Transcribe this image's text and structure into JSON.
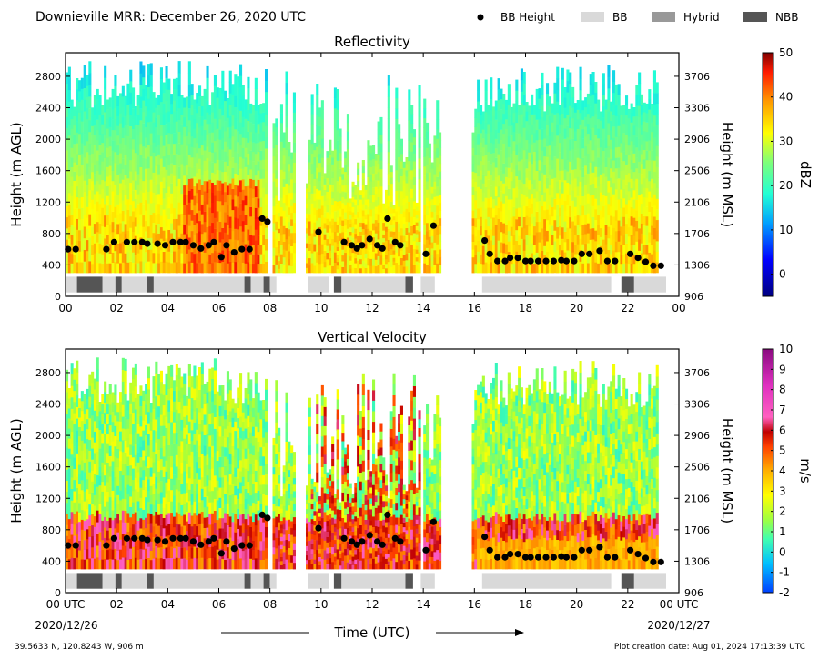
{
  "header": {
    "title": "Downieville MRR:  December 26, 2020 UTC",
    "legend": [
      {
        "label": "BB Height",
        "kind": "dot",
        "color": "#000000"
      },
      {
        "label": "BB",
        "kind": "patch",
        "color": "#d9d9d9"
      },
      {
        "label": "Hybrid",
        "kind": "patch",
        "color": "#999999"
      },
      {
        "label": "NBB",
        "kind": "patch",
        "color": "#555555"
      }
    ]
  },
  "chart_data": [
    {
      "type": "heatmap",
      "title": "Reflectivity",
      "ylabel": "Height (m AGL)",
      "y2label": "Height (m MSL)",
      "ylim": [
        0,
        3100
      ],
      "yticks": [
        "0",
        "400",
        "800",
        "1200",
        "1600",
        "2000",
        "2400",
        "2800"
      ],
      "y2ticks": [
        "906",
        "1306",
        "1706",
        "2106",
        "2506",
        "2906",
        "3306",
        "3706"
      ],
      "xlim": [
        0,
        24
      ],
      "xticks": [
        "00",
        "02",
        "04",
        "06",
        "08",
        "10",
        "12",
        "14",
        "16",
        "18",
        "20",
        "22",
        "00"
      ],
      "colorbar": {
        "label": "dBZ",
        "min": -5,
        "max": 50,
        "ticks": [
          "0",
          "10",
          "20",
          "30",
          "40",
          "50"
        ]
      }
    },
    {
      "type": "heatmap",
      "title": "Vertical Velocity",
      "ylabel": "Height (m AGL)",
      "y2label": "Height (m MSL)",
      "ylim": [
        0,
        3100
      ],
      "yticks": [
        "0",
        "400",
        "800",
        "1200",
        "1600",
        "2000",
        "2400",
        "2800"
      ],
      "y2ticks": [
        "906",
        "1306",
        "1706",
        "2106",
        "2506",
        "2906",
        "3306",
        "3706"
      ],
      "xlim": [
        0,
        24
      ],
      "xticks": [
        "00 UTC",
        "02",
        "04",
        "06",
        "08",
        "10",
        "12",
        "14",
        "16",
        "18",
        "20",
        "22",
        "00 UTC"
      ],
      "colorbar": {
        "label": "m/s",
        "min": -2,
        "max": 10,
        "ticks": [
          "-2",
          "-1",
          "0",
          "1",
          "2",
          "3",
          "4",
          "5",
          "6",
          "7",
          "8",
          "9",
          "10"
        ]
      }
    }
  ],
  "bb_height": {
    "points": [
      [
        0.1,
        600
      ],
      [
        0.4,
        600
      ],
      [
        1.6,
        600
      ],
      [
        1.9,
        690
      ],
      [
        2.4,
        690
      ],
      [
        2.7,
        690
      ],
      [
        3.0,
        690
      ],
      [
        3.2,
        670
      ],
      [
        3.6,
        670
      ],
      [
        3.9,
        650
      ],
      [
        4.2,
        690
      ],
      [
        4.5,
        690
      ],
      [
        4.7,
        690
      ],
      [
        5.0,
        650
      ],
      [
        5.3,
        610
      ],
      [
        5.6,
        650
      ],
      [
        5.8,
        690
      ],
      [
        6.1,
        500
      ],
      [
        6.3,
        650
      ],
      [
        6.6,
        560
      ],
      [
        6.9,
        600
      ],
      [
        7.2,
        600
      ],
      [
        7.7,
        990
      ],
      [
        7.9,
        950
      ],
      [
        9.9,
        820
      ],
      [
        10.9,
        690
      ],
      [
        11.2,
        650
      ],
      [
        11.4,
        610
      ],
      [
        11.6,
        650
      ],
      [
        11.9,
        730
      ],
      [
        12.2,
        650
      ],
      [
        12.4,
        610
      ],
      [
        12.6,
        990
      ],
      [
        12.9,
        690
      ],
      [
        13.1,
        650
      ],
      [
        14.1,
        540
      ],
      [
        14.4,
        900
      ],
      [
        16.4,
        710
      ],
      [
        16.6,
        540
      ],
      [
        16.9,
        450
      ],
      [
        17.2,
        450
      ],
      [
        17.4,
        490
      ],
      [
        17.7,
        490
      ],
      [
        18.0,
        450
      ],
      [
        18.2,
        450
      ],
      [
        18.5,
        450
      ],
      [
        18.8,
        450
      ],
      [
        19.1,
        450
      ],
      [
        19.4,
        460
      ],
      [
        19.6,
        450
      ],
      [
        19.9,
        450
      ],
      [
        20.2,
        540
      ],
      [
        20.5,
        540
      ],
      [
        20.9,
        580
      ],
      [
        21.2,
        450
      ],
      [
        21.5,
        450
      ],
      [
        22.1,
        540
      ],
      [
        22.4,
        490
      ],
      [
        22.7,
        440
      ],
      [
        23.0,
        390
      ],
      [
        23.3,
        390
      ]
    ]
  },
  "bb_bar": {
    "segments": [
      {
        "start": 0.0,
        "end": 0.45,
        "type": "BB"
      },
      {
        "start": 0.45,
        "end": 1.45,
        "type": "NBB"
      },
      {
        "start": 1.45,
        "end": 1.95,
        "type": "BB"
      },
      {
        "start": 1.95,
        "end": 2.2,
        "type": "NBB"
      },
      {
        "start": 2.2,
        "end": 3.2,
        "type": "BB"
      },
      {
        "start": 3.2,
        "end": 3.45,
        "type": "NBB"
      },
      {
        "start": 3.45,
        "end": 7.0,
        "type": "BB"
      },
      {
        "start": 7.0,
        "end": 7.25,
        "type": "NBB"
      },
      {
        "start": 7.25,
        "end": 7.75,
        "type": "BB"
      },
      {
        "start": 7.75,
        "end": 8.0,
        "type": "NBB"
      },
      {
        "start": 8.0,
        "end": 8.25,
        "type": "BB"
      },
      {
        "start": 9.5,
        "end": 10.3,
        "type": "BB"
      },
      {
        "start": 10.5,
        "end": 10.8,
        "type": "NBB"
      },
      {
        "start": 10.8,
        "end": 13.3,
        "type": "BB"
      },
      {
        "start": 13.3,
        "end": 13.6,
        "type": "NBB"
      },
      {
        "start": 13.9,
        "end": 14.45,
        "type": "BB"
      },
      {
        "start": 16.3,
        "end": 21.35,
        "type": "BB"
      },
      {
        "start": 21.75,
        "end": 22.25,
        "type": "NBB"
      },
      {
        "start": 22.25,
        "end": 23.5,
        "type": "BB"
      }
    ]
  },
  "xlabel": "Time (UTC)",
  "date_start": "2020/12/26",
  "date_end": "2020/12/27",
  "footer": {
    "location": "39.5633 N, 120.8243 W, 906 m",
    "created": "Plot creation date: Aug 01, 2024 17:13:39 UTC"
  }
}
